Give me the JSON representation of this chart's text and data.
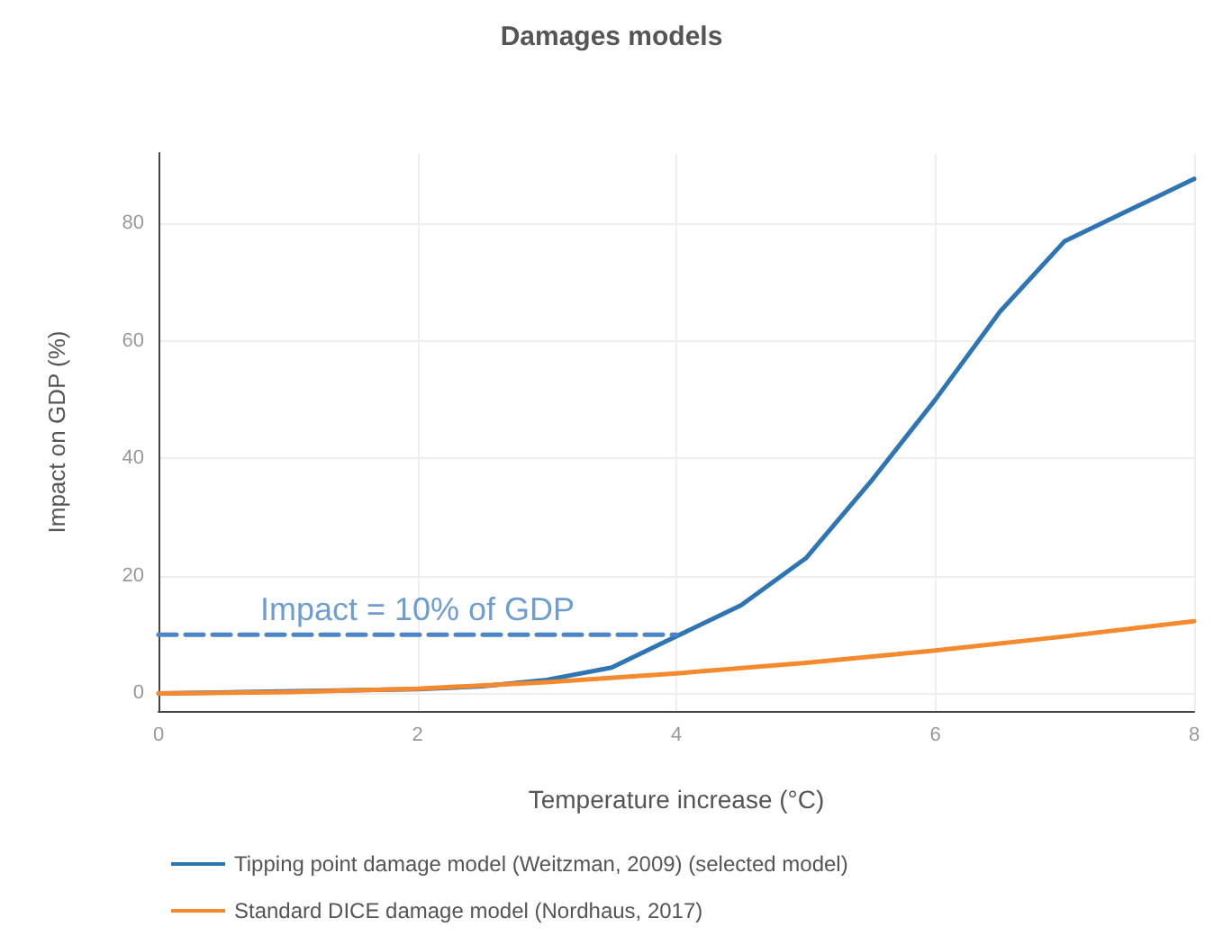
{
  "chart_data": {
    "type": "line",
    "title": "Damages models",
    "xlabel": "Temperature increase (°C)",
    "ylabel": "Impact on GDP (%)",
    "x": [
      0,
      2,
      2.5,
      3,
      3.5,
      4,
      4.5,
      5,
      5.5,
      6,
      6.5,
      7,
      7.5,
      8
    ],
    "series": [
      {
        "name": "Tipping point damage model (Weitzman, 2009) (selected model)",
        "color": "#2e75b6",
        "values": [
          0,
          0.7,
          1.2,
          2.3,
          4.4,
          9.7,
          15,
          23,
          36,
          50,
          65,
          77,
          82.3,
          87.6
        ]
      },
      {
        "name": "Standard DICE damage model (Nordhaus, 2017)",
        "color": "#f5892d",
        "x": [
          0,
          1,
          2,
          3,
          4,
          5,
          6,
          7,
          8
        ],
        "values": [
          0,
          0.2,
          0.8,
          1.9,
          3.4,
          5.2,
          7.3,
          9.7,
          12.3
        ]
      },
      {
        "type": "line",
        "color": "#4a86c5",
        "line_style": "dashed",
        "x": [
          0,
          4
        ],
        "values": [
          10,
          10
        ]
      }
    ],
    "annotations": [
      {
        "text": "Impact = 10% of GDP",
        "x": 2,
        "y": 10
      }
    ],
    "xlim": [
      0,
      8
    ],
    "xticks": [
      0,
      2,
      4,
      6,
      8
    ],
    "ylim": [
      -3,
      92
    ],
    "yticks": [
      0,
      20,
      40,
      60,
      80
    ],
    "grid": true,
    "legend": "bottom",
    "marker": "none",
    "line_style": "solid"
  }
}
